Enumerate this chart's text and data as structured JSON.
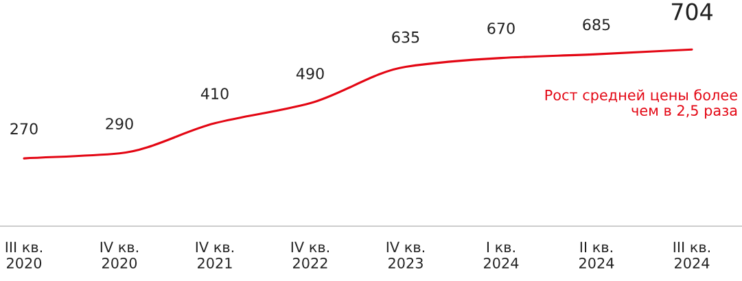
{
  "chart_data": {
    "type": "line",
    "categories": [
      "III кв.\n2020",
      "IV кв.\n2020",
      "IV кв.\n2021",
      "IV кв.\n2022",
      "IV кв.\n2023",
      "I кв.\n2024",
      "II кв.\n2024",
      "III кв.\n2024"
    ],
    "series": [
      {
        "color": "#e30613",
        "values": [
          270,
          290,
          410,
          490,
          635,
          670,
          685,
          704
        ]
      }
    ],
    "tick_labels": "x",
    "data_labels": true,
    "grid": false,
    "legend": false,
    "marker": "none",
    "line_style": "solid",
    "annotations": [
      "Рост средней цены более\nчем в 2,5 раза"
    ]
  }
}
